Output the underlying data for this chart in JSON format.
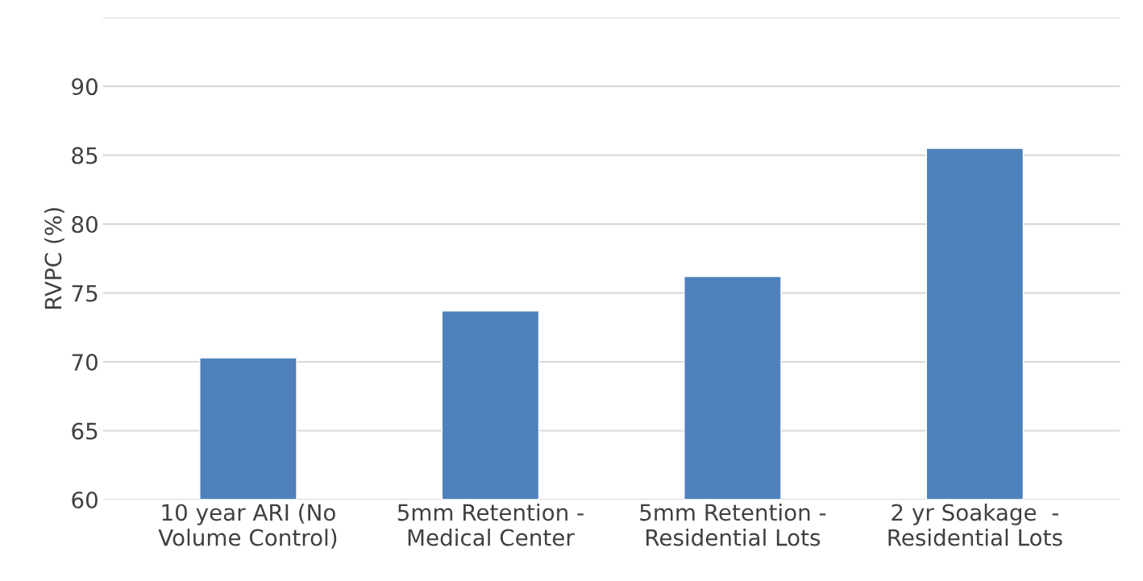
{
  "chart_data": {
    "type": "bar",
    "ylabel": "RVPC (%)",
    "categories": [
      "10 year ARI (No\nVolume Control)",
      "5mm Retention -\nMedical Center",
      "5mm Retention -\nResidential Lots",
      "2 yr Soakage  -\nResidential Lots"
    ],
    "values": [
      70.3,
      73.7,
      76.2,
      85.5
    ],
    "color": "#4f81bd",
    "ylim": [
      60,
      95
    ],
    "yticks": [
      60,
      65,
      70,
      75,
      80,
      85,
      90,
      {
        "value": 95,
        "label": null
      }
    ],
    "grid": "y"
  }
}
